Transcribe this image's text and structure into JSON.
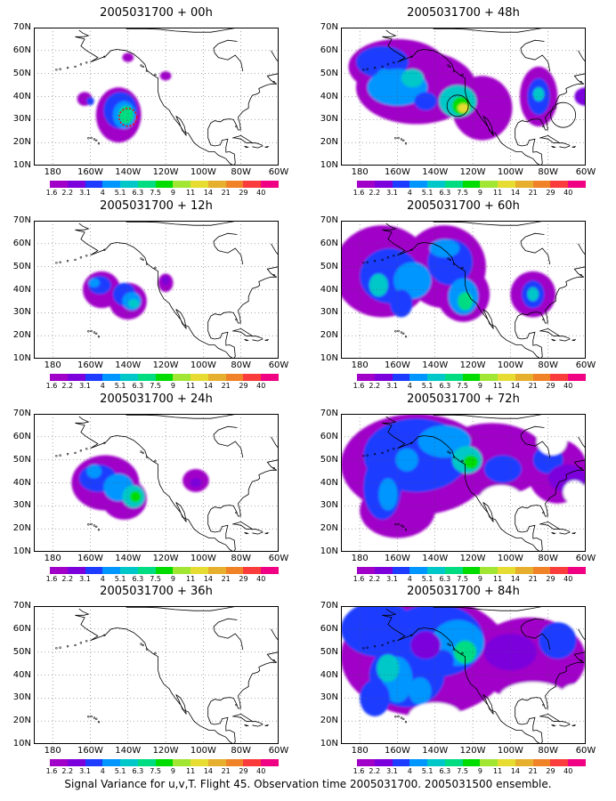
{
  "figure": {
    "caption": "Signal Variance for u,v,T. Flight 45. Observation time 2005031700. 2005031500 ensemble."
  },
  "axes": {
    "lat_ticks": [
      "70N",
      "60N",
      "50N",
      "40N",
      "30N",
      "20N",
      "10N"
    ],
    "lon_ticks": [
      "180",
      "160W",
      "140W",
      "120W",
      "100W",
      "80W",
      "60W"
    ],
    "lat_range": [
      10,
      70
    ],
    "lon_range": [
      -190,
      -60
    ]
  },
  "colorbar": {
    "labels": [
      "1.6",
      "2.2",
      "3.1",
      "4",
      "5.1",
      "6.3",
      "7.5",
      "9",
      "11",
      "14",
      "21",
      "29",
      "40"
    ],
    "colors": [
      "#a000c8",
      "#7b00dc",
      "#1e3cff",
      "#0096ff",
      "#00c8c8",
      "#00dc82",
      "#00dc00",
      "#a0e632",
      "#e6dc32",
      "#e6af2d",
      "#f08228",
      "#fa3c3c",
      "#f00082"
    ]
  },
  "panels": [
    {
      "id": "p00",
      "title": "2005031700 + 00h"
    },
    {
      "id": "p48",
      "title": "2005031700 + 48h"
    },
    {
      "id": "p12",
      "title": "2005031700 + 12h"
    },
    {
      "id": "p60",
      "title": "2005031700 + 60h"
    },
    {
      "id": "p24",
      "title": "2005031700 + 24h"
    },
    {
      "id": "p72",
      "title": "2005031700 + 72h"
    },
    {
      "id": "p36",
      "title": "2005031700 + 36h"
    },
    {
      "id": "p84",
      "title": "2005031700 + 84h"
    }
  ]
}
